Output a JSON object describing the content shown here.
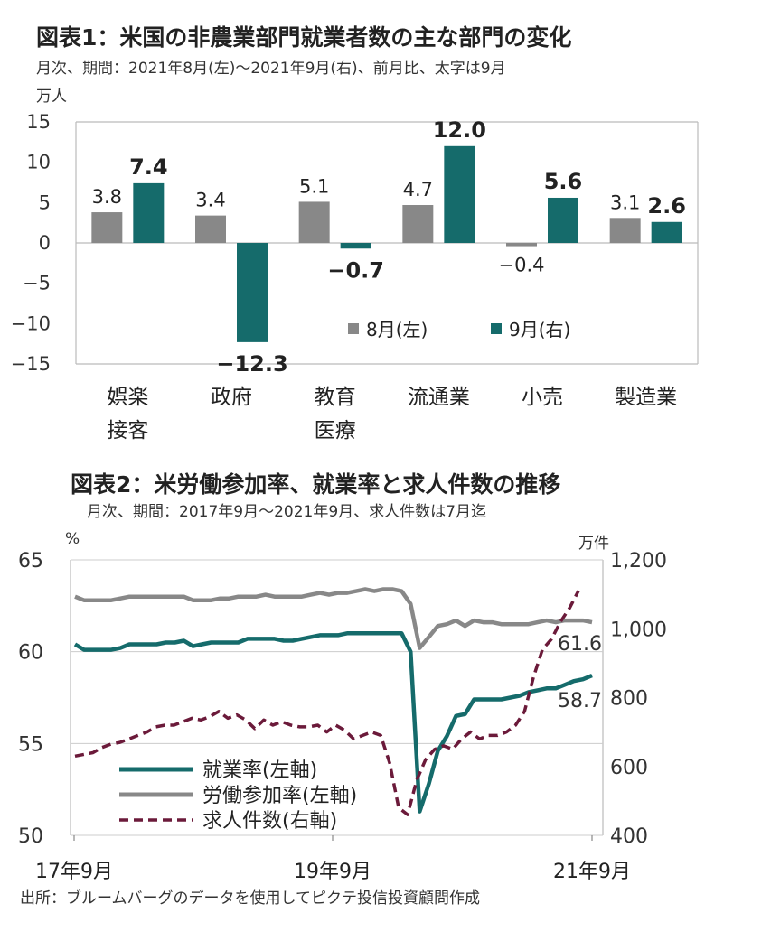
{
  "chart1": {
    "title": "図表1：米国の非農業部門就業者数の主な部門の変化",
    "subtitle": "月次、期間：2021年8月(左)～2021年9月(右)、前月比、太字は9月",
    "unit": "万人",
    "chart_data": {
      "type": "bar",
      "categories": [
        [
          "娯楽",
          "接客"
        ],
        [
          "政府"
        ],
        [
          "教育",
          "医療"
        ],
        [
          "流通業"
        ],
        [
          "小売"
        ],
        [
          "製造業"
        ]
      ],
      "series": [
        {
          "name": "8月(左)",
          "color": "#888888",
          "values": [
            3.8,
            3.4,
            5.1,
            4.7,
            -0.4,
            3.1
          ],
          "labels": [
            "3.8",
            "3.4",
            "5.1",
            "4.7",
            "-0.4",
            "3.1"
          ]
        },
        {
          "name": "9月(右)",
          "color": "#156B6B",
          "values": [
            7.4,
            -12.3,
            -0.7,
            12.0,
            5.6,
            2.6
          ],
          "labels": [
            "7.4",
            "-12.3",
            "-0.7",
            "12.0",
            "5.6",
            "2.6"
          ]
        }
      ],
      "yticks": [
        "15",
        "10",
        "5",
        "0",
        "-5",
        "-10",
        "-15"
      ],
      "ylim": [
        -15,
        15
      ],
      "legend_position": "lower-right"
    }
  },
  "chart2": {
    "title": "図表2：米労働参加率、就業率と求人件数の推移",
    "subtitle": "月次、期間：2017年9月～2021年9月、求人件数は7月迄",
    "left_unit": "%",
    "right_unit": "万件",
    "chart_data": {
      "type": "line",
      "x_ticks": [
        "17年9月",
        "19年9月",
        "21年9月"
      ],
      "y_left_ticks": [
        "65",
        "60",
        "55",
        "50"
      ],
      "y_left_lim": [
        50,
        65
      ],
      "y_right_ticks": [
        "1,200",
        "1,000",
        "800",
        "600",
        "400"
      ],
      "y_right_lim": [
        400,
        1200
      ],
      "series": [
        {
          "name": "就業率(左軸)",
          "axis": "left",
          "color": "#156B6B",
          "style": "solid",
          "end_label": "58.7",
          "values": [
            60.4,
            60.1,
            60.1,
            60.1,
            60.1,
            60.2,
            60.4,
            60.4,
            60.4,
            60.4,
            60.5,
            60.5,
            60.6,
            60.3,
            60.4,
            60.5,
            60.5,
            60.5,
            60.5,
            60.7,
            60.7,
            60.7,
            60.7,
            60.6,
            60.6,
            60.7,
            60.8,
            60.9,
            60.9,
            60.9,
            61.0,
            61.0,
            61.0,
            61.0,
            61.0,
            61.0,
            61.0,
            60.0,
            51.3,
            52.8,
            54.6,
            55.4,
            56.5,
            56.6,
            57.4,
            57.4,
            57.4,
            57.4,
            57.5,
            57.6,
            57.8,
            57.9,
            58.0,
            58.0,
            58.2,
            58.4,
            58.5,
            58.7
          ]
        },
        {
          "name": "労働参加率(左軸)",
          "axis": "left",
          "color": "#888888",
          "style": "solid",
          "end_label": "61.6",
          "values": [
            63.0,
            62.8,
            62.8,
            62.8,
            62.8,
            62.9,
            63.0,
            63.0,
            63.0,
            63.0,
            63.0,
            63.0,
            63.0,
            62.8,
            62.8,
            62.8,
            62.9,
            62.9,
            63.0,
            63.0,
            63.0,
            63.1,
            63.0,
            63.0,
            63.0,
            63.0,
            63.1,
            63.2,
            63.1,
            63.2,
            63.2,
            63.3,
            63.4,
            63.3,
            63.4,
            63.4,
            63.3,
            62.6,
            60.2,
            60.8,
            61.4,
            61.5,
            61.7,
            61.4,
            61.7,
            61.6,
            61.6,
            61.5,
            61.5,
            61.5,
            61.5,
            61.6,
            61.7,
            61.6,
            61.7,
            61.7,
            61.7,
            61.6
          ]
        },
        {
          "name": "求人件数(右軸)",
          "axis": "right",
          "color": "#6B1A3A",
          "style": "dashed",
          "values": [
            630,
            635,
            640,
            655,
            665,
            670,
            680,
            690,
            700,
            715,
            720,
            720,
            730,
            740,
            735,
            745,
            760,
            740,
            750,
            735,
            710,
            735,
            720,
            730,
            720,
            715,
            715,
            720,
            700,
            720,
            705,
            680,
            690,
            700,
            690,
            610,
            480,
            460,
            560,
            620,
            650,
            660,
            650,
            680,
            700,
            680,
            690,
            690,
            700,
            720,
            760,
            860,
            940,
            970,
            1020,
            1060,
            1110
          ]
        }
      ],
      "legend_position": "lower-left"
    }
  },
  "source": "出所：ブルームバーグのデータを使用してピクテ投信投資顧問作成"
}
